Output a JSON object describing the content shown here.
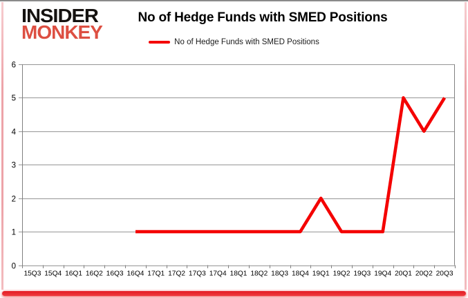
{
  "logo": {
    "line1": "INSIDER",
    "line2": "MONKEY"
  },
  "header": {
    "title": "No of Hedge Funds with SMED Positions"
  },
  "legend": {
    "label": "No of Hedge Funds with SMED Positions",
    "swatch_color": "#f40000"
  },
  "colors": {
    "series_red": "#f40000",
    "logo_red": "#dd4f42",
    "grid_gray": "#959595",
    "axis_gray": "#808080",
    "frame_pink": "#eda3a8",
    "frame_bottom_red": "#e31e24"
  },
  "chart_data": {
    "type": "line",
    "title": "No of Hedge Funds with SMED Positions",
    "xlabel": "",
    "ylabel": "",
    "categories": [
      "15Q3",
      "15Q4",
      "16Q1",
      "16Q2",
      "16Q3",
      "16Q4",
      "17Q1",
      "17Q2",
      "17Q3",
      "17Q4",
      "18Q1",
      "18Q2",
      "18Q3",
      "18Q4",
      "19Q1",
      "19Q2",
      "19Q3",
      "19Q4",
      "20Q1",
      "20Q2",
      "20Q3"
    ],
    "series": [
      {
        "name": "No of Hedge Funds with SMED Positions",
        "color": "#f40000",
        "values": [
          null,
          null,
          null,
          null,
          null,
          1,
          1,
          1,
          1,
          1,
          1,
          1,
          1,
          1,
          2,
          1,
          1,
          1,
          5,
          4,
          5
        ]
      }
    ],
    "ylim": [
      0,
      6
    ],
    "yticks": [
      0,
      1,
      2,
      3,
      4,
      5,
      6
    ],
    "grid": true,
    "legend_position": "top"
  }
}
